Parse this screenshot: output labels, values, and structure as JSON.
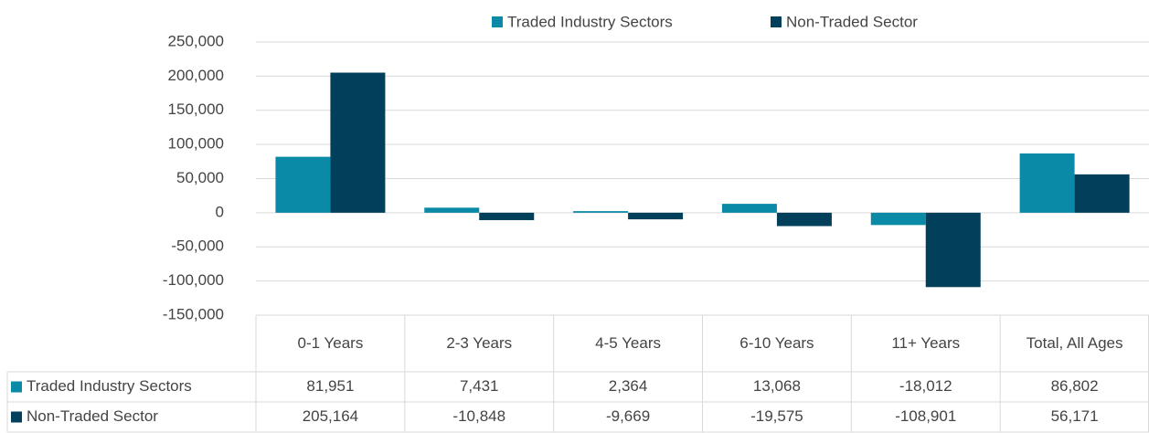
{
  "chart_data": {
    "type": "bar",
    "categories": [
      "0-1 Years",
      "2-3 Years",
      "4-5 Years",
      "6-10 Years",
      "11+ Years",
      "Total, All Ages"
    ],
    "series": [
      {
        "name": "Traded Industry Sectors",
        "color": "#0a8aa6",
        "values": [
          81951,
          7431,
          2364,
          13068,
          -18012,
          86802
        ],
        "value_labels": [
          "81,951",
          "7,431",
          "2,364",
          "13,068",
          "-18,012",
          "86,802"
        ]
      },
      {
        "name": "Non-Traded Sector",
        "color": "#023f5a",
        "values": [
          205164,
          -10848,
          -9669,
          -19575,
          -108901,
          56171
        ],
        "value_labels": [
          "205,164",
          "-10,848",
          "-9,669",
          "-19,575",
          "-108,901",
          "56,171"
        ]
      }
    ],
    "ylim": [
      -150000,
      250000
    ],
    "yticks": [
      {
        "value": -150000,
        "label": "-150,000"
      },
      {
        "value": -100000,
        "label": "-100,000"
      },
      {
        "value": -50000,
        "label": "-50,000"
      },
      0,
      {
        "value": 50000,
        "label": "50,000"
      },
      {
        "value": 100000,
        "label": "100,000"
      },
      {
        "value": 150000,
        "label": "150,000"
      },
      {
        "value": 200000,
        "label": "200,000"
      },
      {
        "value": 250000,
        "label": "250,000"
      }
    ],
    "grid": true,
    "legend": "top"
  }
}
